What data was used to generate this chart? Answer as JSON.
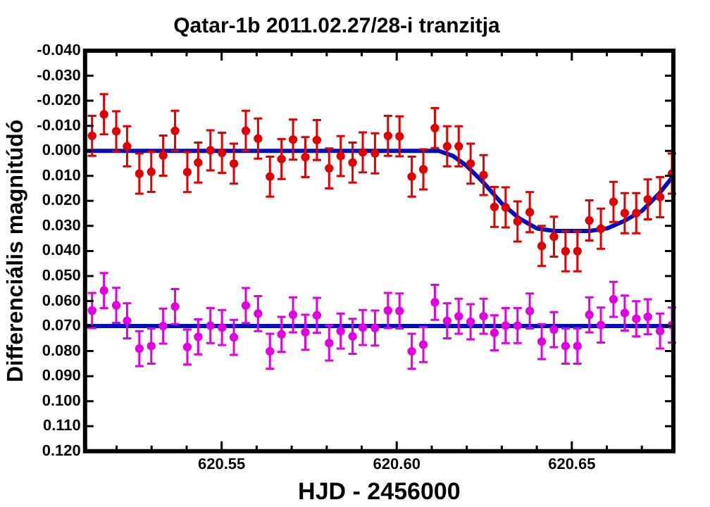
{
  "chart_data": {
    "type": "scatter",
    "title": "Qatar-1b 2011.02.27/28-i tranzitja",
    "xlabel": "HJD - 2456000",
    "ylabel": "Differenciális magnitúdó",
    "xlim": [
      620.511,
      620.679
    ],
    "ylim": [
      0.12,
      -0.04
    ],
    "xticks": [
      {
        "value": 620.52,
        "label": null
      },
      {
        "value": 620.53,
        "label": null
      },
      {
        "value": 620.54,
        "label": null
      },
      {
        "value": 620.55,
        "label": "620.55"
      },
      {
        "value": 620.56,
        "label": null
      },
      {
        "value": 620.57,
        "label": null
      },
      {
        "value": 620.58,
        "label": null
      },
      {
        "value": 620.59,
        "label": null
      },
      {
        "value": 620.6,
        "label": "620.60"
      },
      {
        "value": 620.61,
        "label": null
      },
      {
        "value": 620.62,
        "label": null
      },
      {
        "value": 620.63,
        "label": null
      },
      {
        "value": 620.64,
        "label": null
      },
      {
        "value": 620.65,
        "label": "620.65"
      },
      {
        "value": 620.66,
        "label": null
      },
      {
        "value": 620.67,
        "label": null
      }
    ],
    "yticks": [
      {
        "value": -0.04,
        "label": "-0.040"
      },
      {
        "value": -0.03,
        "label": "-0.030"
      },
      {
        "value": -0.02,
        "label": "-0.020"
      },
      {
        "value": -0.01,
        "label": "-0.010"
      },
      {
        "value": 0,
        "label": "0.000"
      },
      {
        "value": 0.01,
        "label": "0.010"
      },
      {
        "value": 0.02,
        "label": "0.020"
      },
      {
        "value": 0.03,
        "label": "0.030"
      },
      {
        "value": 0.04,
        "label": "0.040"
      },
      {
        "value": 0.05,
        "label": "0.050"
      },
      {
        "value": 0.06,
        "label": "0.060"
      },
      {
        "value": 0.07,
        "label": "0.070"
      },
      {
        "value": 0.08,
        "label": "0.080"
      },
      {
        "value": 0.09,
        "label": "0.090"
      },
      {
        "value": 0.1,
        "label": "0.100"
      },
      {
        "value": 0.11,
        "label": "0.110"
      },
      {
        "value": 0.12,
        "label": "0.120"
      }
    ],
    "marker": "circle",
    "legend": false,
    "grid": false,
    "x": [
      620.513,
      620.5164,
      620.5199,
      620.523,
      620.5265,
      620.5299,
      620.5333,
      620.5367,
      620.5402,
      620.5433,
      620.5468,
      620.5501,
      620.5535,
      620.5569,
      620.5604,
      620.5638,
      620.5671,
      620.5704,
      620.5739,
      620.5772,
      620.5807,
      620.584,
      620.5874,
      620.5903,
      620.5938,
      620.5975,
      620.6008,
      620.6043,
      620.6076,
      620.6109,
      620.6144,
      620.6177,
      620.6211,
      620.6248,
      620.6279,
      620.6311,
      620.6345,
      620.638,
      620.6414,
      620.6449,
      620.6482,
      620.6516,
      620.655,
      620.6583,
      620.6619,
      620.6651,
      620.6684,
      620.6717,
      620.6752,
      620.6786
    ],
    "series": [
      {
        "type": "scatter",
        "color": "#e00000",
        "values": [
          -0.006,
          -0.0146,
          -0.0078,
          -0.0018,
          0.0091,
          0.0084,
          0.0019,
          -0.008,
          0.0085,
          0.0047,
          -0.0002,
          0.0008,
          0.0051,
          -0.008,
          -0.0049,
          0.0103,
          0.0033,
          -0.0045,
          0.0025,
          -0.0043,
          0.007,
          0.0021,
          0.0047,
          0.0006,
          0.001,
          -0.006,
          -0.0058,
          0.0103,
          0.0074,
          -0.0091,
          -0.0018,
          -0.0018,
          0.0051,
          0.0097,
          0.0224,
          0.0226,
          0.0282,
          0.0245,
          0.038,
          0.0343,
          0.0401,
          0.0401,
          0.0278,
          0.0311,
          0.0204,
          0.0249,
          0.0249,
          0.0194,
          0.0185,
          0.0091
        ],
        "errors": [
          0.008,
          0.008,
          0.008,
          0.008,
          0.008,
          0.008,
          0.008,
          0.008,
          0.008,
          0.008,
          0.008,
          0.008,
          0.008,
          0.008,
          0.008,
          0.008,
          0.008,
          0.008,
          0.008,
          0.008,
          0.008,
          0.008,
          0.008,
          0.008,
          0.008,
          0.008,
          0.008,
          0.008,
          0.008,
          0.008,
          0.008,
          0.008,
          0.008,
          0.008,
          0.008,
          0.008,
          0.008,
          0.008,
          0.008,
          0.008,
          0.008,
          0.008,
          0.008,
          0.008,
          0.008,
          0.008,
          0.008,
          0.008,
          0.008,
          0.008
        ]
      },
      {
        "type": "scatter",
        "color": "#e000e0",
        "values": [
          0.0638,
          0.0558,
          0.0617,
          0.0679,
          0.079,
          0.078,
          0.07,
          0.0622,
          0.0784,
          0.0743,
          0.0698,
          0.0706,
          0.0745,
          0.0618,
          0.065,
          0.0801,
          0.0733,
          0.0655,
          0.0725,
          0.0657,
          0.0768,
          0.072,
          0.0741,
          0.0706,
          0.0708,
          0.0638,
          0.064,
          0.0801,
          0.0774,
          0.0605,
          0.0679,
          0.0661,
          0.0683,
          0.0661,
          0.0727,
          0.0698,
          0.0698,
          0.064,
          0.0762,
          0.0714,
          0.078,
          0.078,
          0.0655,
          0.0696,
          0.0593,
          0.0648,
          0.0671,
          0.0663,
          0.072,
          0.0696
        ],
        "errors": [
          0.007,
          0.007,
          0.007,
          0.007,
          0.007,
          0.007,
          0.007,
          0.007,
          0.007,
          0.007,
          0.007,
          0.007,
          0.007,
          0.007,
          0.007,
          0.007,
          0.007,
          0.007,
          0.007,
          0.007,
          0.007,
          0.007,
          0.007,
          0.007,
          0.007,
          0.007,
          0.007,
          0.007,
          0.007,
          0.007,
          0.007,
          0.007,
          0.007,
          0.007,
          0.007,
          0.007,
          0.007,
          0.007,
          0.007,
          0.007,
          0.007,
          0.007,
          0.007,
          0.007,
          0.007,
          0.007,
          0.007,
          0.007,
          0.007,
          0.007
        ]
      },
      {
        "type": "line",
        "color": "#0010c0",
        "marker": "none",
        "x": [
          620.511,
          620.612,
          620.616,
          620.62,
          620.625,
          620.63,
          620.635,
          620.64,
          620.645,
          620.655,
          620.66,
          620.665,
          620.67,
          620.675,
          620.679
        ],
        "values": [
          0,
          0,
          0.002,
          0.006,
          0.013,
          0.021,
          0.027,
          0.031,
          0.032,
          0.032,
          0.031,
          0.028,
          0.024,
          0.017,
          0.01
        ]
      },
      {
        "type": "line",
        "color": "#0010c0",
        "marker": "none",
        "x": [
          620.511,
          620.679
        ],
        "values": [
          0.07,
          0.07
        ]
      }
    ]
  }
}
